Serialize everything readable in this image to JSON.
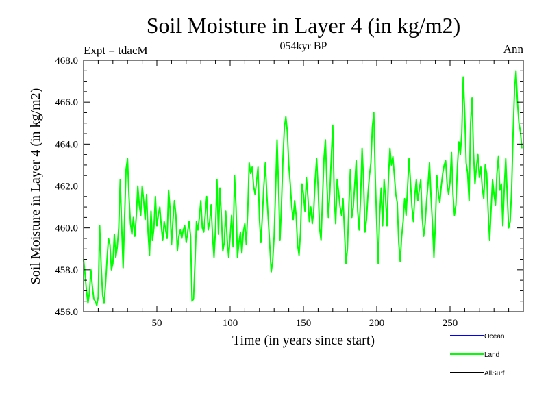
{
  "chart_data": {
    "type": "line",
    "title": "Soil Moisture in Layer 4 (in kg/m2)",
    "subtitle": "054kyr BP",
    "left_label": "Expt = tdacM",
    "right_label": "Ann",
    "xlabel": "Time (in years since start)",
    "ylabel": "Soil Moisture in Layer 4 (in kg/m2)",
    "xlim": [
      0,
      300
    ],
    "ylim": [
      456.0,
      468.0
    ],
    "x_ticks": [
      50,
      100,
      150,
      200,
      250
    ],
    "y_ticks": [
      456.0,
      458.0,
      460.0,
      462.0,
      464.0,
      466.0,
      468.0
    ],
    "legend": [
      {
        "name": "Ocean",
        "color": "#0000ff"
      },
      {
        "name": "Land",
        "color": "#00ff00"
      },
      {
        "name": "AllSurf",
        "color": "#000000"
      }
    ],
    "series": [
      {
        "name": "Land",
        "color": "#00ff00",
        "points": [
          [
            0,
            458.5
          ],
          [
            1,
            457.8
          ],
          [
            2,
            457.0
          ],
          [
            3,
            456.4
          ],
          [
            4,
            456.9
          ],
          [
            5,
            458.0
          ],
          [
            6,
            457.2
          ],
          [
            7,
            456.6
          ],
          [
            8,
            456.5
          ],
          [
            9,
            456.3
          ],
          [
            10,
            456.7
          ],
          [
            11,
            460.1
          ],
          [
            12,
            458.2
          ],
          [
            13,
            456.8
          ],
          [
            14,
            456.4
          ],
          [
            15,
            457.3
          ],
          [
            16,
            458.5
          ],
          [
            17,
            459.5
          ],
          [
            18,
            459.2
          ],
          [
            19,
            458.0
          ],
          [
            20,
            458.3
          ],
          [
            21,
            459.7
          ],
          [
            22,
            458.6
          ],
          [
            23,
            459.1
          ],
          [
            24,
            460.0
          ],
          [
            25,
            462.3
          ],
          [
            26,
            460.1
          ],
          [
            27,
            458.1
          ],
          [
            28,
            460.5
          ],
          [
            29,
            462.8
          ],
          [
            30,
            463.3
          ],
          [
            31,
            461.5
          ],
          [
            32,
            460.2
          ],
          [
            33,
            459.7
          ],
          [
            34,
            460.5
          ],
          [
            35,
            459.6
          ],
          [
            36,
            460.6
          ],
          [
            37,
            462.0
          ],
          [
            38,
            461.1
          ],
          [
            39,
            460.6
          ],
          [
            40,
            462.0
          ],
          [
            41,
            461.3
          ],
          [
            42,
            460.4
          ],
          [
            43,
            461.6
          ],
          [
            44,
            459.8
          ],
          [
            45,
            458.7
          ],
          [
            46,
            460.8
          ],
          [
            47,
            459.4
          ],
          [
            48,
            460.0
          ],
          [
            49,
            461.5
          ],
          [
            50,
            460.1
          ],
          [
            51,
            460.6
          ],
          [
            52,
            461.0
          ],
          [
            53,
            460.1
          ],
          [
            54,
            459.4
          ],
          [
            55,
            460.3
          ],
          [
            56,
            459.9
          ],
          [
            57,
            459.5
          ],
          [
            58,
            461.8
          ],
          [
            59,
            460.9
          ],
          [
            60,
            459.2
          ],
          [
            61,
            460.4
          ],
          [
            62,
            461.3
          ],
          [
            63,
            460.6
          ],
          [
            64,
            458.9
          ],
          [
            65,
            459.6
          ],
          [
            66,
            459.9
          ],
          [
            67,
            459.5
          ],
          [
            68,
            459.9
          ],
          [
            69,
            460.1
          ],
          [
            70,
            459.3
          ],
          [
            71,
            459.8
          ],
          [
            72,
            460.3
          ],
          [
            73,
            459.6
          ],
          [
            74,
            456.5
          ],
          [
            75,
            456.6
          ],
          [
            76,
            458.3
          ],
          [
            77,
            460.3
          ],
          [
            78,
            459.9
          ],
          [
            79,
            460.5
          ],
          [
            80,
            461.3
          ],
          [
            81,
            460.0
          ],
          [
            82,
            459.8
          ],
          [
            83,
            460.6
          ],
          [
            84,
            461.5
          ],
          [
            85,
            459.9
          ],
          [
            86,
            460.3
          ],
          [
            87,
            461.1
          ],
          [
            88,
            459.6
          ],
          [
            89,
            458.6
          ],
          [
            90,
            459.9
          ],
          [
            91,
            462.3
          ],
          [
            92,
            459.7
          ],
          [
            93,
            461.9
          ],
          [
            94,
            460.6
          ],
          [
            95,
            458.9
          ],
          [
            96,
            459.3
          ],
          [
            97,
            460.8
          ],
          [
            98,
            459.4
          ],
          [
            99,
            458.6
          ],
          [
            100,
            459.6
          ],
          [
            101,
            460.6
          ],
          [
            102,
            459.1
          ],
          [
            103,
            462.5
          ],
          [
            104,
            461.0
          ],
          [
            105,
            458.6
          ],
          [
            106,
            459.3
          ],
          [
            107,
            459.8
          ],
          [
            108,
            458.8
          ],
          [
            109,
            459.8
          ],
          [
            110,
            460.2
          ],
          [
            111,
            459.2
          ],
          [
            112,
            460.8
          ],
          [
            113,
            463.1
          ],
          [
            114,
            462.6
          ],
          [
            115,
            462.9
          ],
          [
            116,
            462.0
          ],
          [
            117,
            461.6
          ],
          [
            118,
            462.2
          ],
          [
            119,
            462.9
          ],
          [
            120,
            460.4
          ],
          [
            121,
            459.3
          ],
          [
            122,
            460.6
          ],
          [
            123,
            462.0
          ],
          [
            124,
            463.1
          ],
          [
            125,
            461.6
          ],
          [
            126,
            460.4
          ],
          [
            127,
            459.2
          ],
          [
            128,
            457.9
          ],
          [
            129,
            458.4
          ],
          [
            130,
            459.6
          ],
          [
            131,
            461.8
          ],
          [
            132,
            464.2
          ],
          [
            133,
            462.0
          ],
          [
            134,
            459.4
          ],
          [
            135,
            461.1
          ],
          [
            136,
            463.3
          ],
          [
            137,
            464.8
          ],
          [
            138,
            465.3
          ],
          [
            139,
            464.6
          ],
          [
            140,
            463.0
          ],
          [
            141,
            462.1
          ],
          [
            142,
            461.0
          ],
          [
            143,
            460.4
          ],
          [
            144,
            461.3
          ],
          [
            145,
            460.6
          ],
          [
            146,
            459.2
          ],
          [
            147,
            458.7
          ],
          [
            148,
            459.8
          ],
          [
            149,
            462.1
          ],
          [
            150,
            461.6
          ],
          [
            151,
            460.8
          ],
          [
            152,
            462.4
          ],
          [
            153,
            461.5
          ],
          [
            154,
            460.3
          ],
          [
            155,
            461.0
          ],
          [
            156,
            460.2
          ],
          [
            157,
            460.8
          ],
          [
            158,
            462.3
          ],
          [
            159,
            463.3
          ],
          [
            160,
            461.9
          ],
          [
            161,
            460.0
          ],
          [
            162,
            459.4
          ],
          [
            163,
            461.4
          ],
          [
            164,
            463.3
          ],
          [
            165,
            464.2
          ],
          [
            166,
            462.1
          ],
          [
            167,
            460.5
          ],
          [
            168,
            461.7
          ],
          [
            169,
            463.4
          ],
          [
            170,
            464.9
          ],
          [
            171,
            461.5
          ],
          [
            172,
            460.2
          ],
          [
            173,
            462.3
          ],
          [
            174,
            461.7
          ],
          [
            175,
            461.0
          ],
          [
            176,
            460.6
          ],
          [
            177,
            461.4
          ],
          [
            178,
            459.8
          ],
          [
            179,
            458.3
          ],
          [
            180,
            459.0
          ],
          [
            181,
            461.1
          ],
          [
            182,
            462.8
          ],
          [
            183,
            460.5
          ],
          [
            184,
            461.0
          ],
          [
            185,
            462.1
          ],
          [
            186,
            463.2
          ],
          [
            187,
            460.8
          ],
          [
            188,
            459.9
          ],
          [
            189,
            461.5
          ],
          [
            190,
            463.8
          ],
          [
            191,
            462.3
          ],
          [
            192,
            459.8
          ],
          [
            193,
            460.4
          ],
          [
            194,
            461.6
          ],
          [
            195,
            462.5
          ],
          [
            196,
            463.1
          ],
          [
            197,
            464.8
          ],
          [
            198,
            465.5
          ],
          [
            199,
            462.4
          ],
          [
            200,
            460.2
          ],
          [
            201,
            458.3
          ],
          [
            202,
            460.6
          ],
          [
            203,
            461.9
          ],
          [
            204,
            460.1
          ],
          [
            205,
            462.3
          ],
          [
            206,
            461.4
          ],
          [
            207,
            460.1
          ],
          [
            208,
            462.4
          ],
          [
            209,
            463.8
          ],
          [
            210,
            463.0
          ],
          [
            211,
            463.4
          ],
          [
            212,
            462.5
          ],
          [
            213,
            461.6
          ],
          [
            214,
            461.2
          ],
          [
            215,
            459.3
          ],
          [
            216,
            458.4
          ],
          [
            217,
            459.6
          ],
          [
            218,
            460.3
          ],
          [
            219,
            461.4
          ],
          [
            220,
            460.6
          ],
          [
            221,
            461.9
          ],
          [
            222,
            463.3
          ],
          [
            223,
            462.2
          ],
          [
            224,
            461.0
          ],
          [
            225,
            460.3
          ],
          [
            226,
            461.6
          ],
          [
            227,
            462.3
          ],
          [
            228,
            461.3
          ],
          [
            229,
            461.8
          ],
          [
            230,
            462.3
          ],
          [
            231,
            460.5
          ],
          [
            232,
            459.6
          ],
          [
            233,
            460.2
          ],
          [
            234,
            461.3
          ],
          [
            235,
            462.1
          ],
          [
            236,
            463.1
          ],
          [
            237,
            461.5
          ],
          [
            238,
            460.2
          ],
          [
            239,
            458.6
          ],
          [
            240,
            460.2
          ],
          [
            241,
            462.5
          ],
          [
            242,
            461.7
          ],
          [
            243,
            461.2
          ],
          [
            244,
            462.0
          ],
          [
            245,
            462.6
          ],
          [
            246,
            463.0
          ],
          [
            247,
            463.2
          ],
          [
            248,
            462.1
          ],
          [
            249,
            461.6
          ],
          [
            250,
            462.2
          ],
          [
            251,
            463.6
          ],
          [
            252,
            461.6
          ],
          [
            253,
            460.6
          ],
          [
            254,
            461.1
          ],
          [
            255,
            462.9
          ],
          [
            256,
            464.1
          ],
          [
            257,
            463.5
          ],
          [
            258,
            464.5
          ],
          [
            259,
            467.2
          ],
          [
            260,
            465.5
          ],
          [
            261,
            463.1
          ],
          [
            262,
            462.6
          ],
          [
            263,
            461.3
          ],
          [
            264,
            465.0
          ],
          [
            265,
            466.2
          ],
          [
            266,
            463.6
          ],
          [
            267,
            462.1
          ],
          [
            268,
            462.9
          ],
          [
            269,
            463.5
          ],
          [
            270,
            462.4
          ],
          [
            271,
            462.9
          ],
          [
            272,
            461.9
          ],
          [
            273,
            461.4
          ],
          [
            274,
            463.0
          ],
          [
            275,
            462.6
          ],
          [
            276,
            460.8
          ],
          [
            277,
            459.4
          ],
          [
            278,
            460.9
          ],
          [
            279,
            462.3
          ],
          [
            280,
            461.6
          ],
          [
            281,
            461.1
          ],
          [
            282,
            462.6
          ],
          [
            283,
            463.4
          ],
          [
            284,
            461.8
          ],
          [
            285,
            462.1
          ],
          [
            286,
            460.1
          ],
          [
            287,
            461.9
          ],
          [
            288,
            463.3
          ],
          [
            289,
            461.6
          ],
          [
            290,
            460.0
          ],
          [
            291,
            460.3
          ],
          [
            292,
            461.8
          ],
          [
            293,
            464.5
          ],
          [
            294,
            466.6
          ],
          [
            295,
            467.5
          ],
          [
            296,
            466.0
          ],
          [
            297,
            465.0
          ],
          [
            298,
            464.6
          ],
          [
            299,
            463.8
          ]
        ]
      }
    ]
  }
}
